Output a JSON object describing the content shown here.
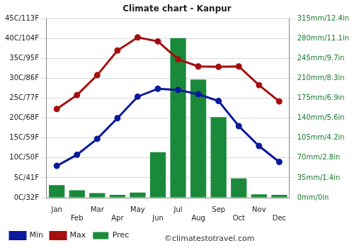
{
  "chart_data": {
    "type": "bar",
    "title": "Climate chart - Kanpur",
    "annotations": [
      "©climatestotravel.com"
    ],
    "categories": [
      "Jan",
      "Feb",
      "Mar",
      "Apr",
      "May",
      "Jun",
      "Jul",
      "Aug",
      "Sep",
      "Oct",
      "Nov",
      "Dec"
    ],
    "series": [
      {
        "name": "Prec",
        "type": "bar",
        "axis": "y2",
        "color": "#1a8a3a",
        "values": [
          22,
          13,
          8,
          5,
          9,
          80,
          281,
          208,
          142,
          34,
          6,
          5
        ]
      },
      {
        "name": "Min",
        "type": "line",
        "marker": "circle",
        "color": "#0a1a9a",
        "values": [
          8,
          10.8,
          14.8,
          20,
          25.4,
          27.4,
          27.1,
          26,
          24.3,
          18,
          13,
          9
        ]
      },
      {
        "name": "Max",
        "type": "line",
        "marker": "circle",
        "color": "#a50f0f",
        "values": [
          22.3,
          25.8,
          30.8,
          37,
          40.3,
          39.3,
          34.8,
          33,
          32.9,
          33,
          28.3,
          24.2
        ]
      }
    ],
    "ylim": [
      0,
      45
    ],
    "yticks": [
      {
        "value": 0,
        "label": "0C/32F"
      },
      {
        "value": 5,
        "label": "5C/41F"
      },
      {
        "value": 10,
        "label": "10C/50F"
      },
      {
        "value": 15,
        "label": "15C/59F"
      },
      {
        "value": 20,
        "label": "20C/68F"
      },
      {
        "value": 25,
        "label": "25C/77F"
      },
      {
        "value": 30,
        "label": "30C/86F"
      },
      {
        "value": 35,
        "label": "35C/95F"
      },
      {
        "value": 40,
        "label": "40C/104F"
      },
      {
        "value": 45,
        "label": "45C/113F"
      }
    ],
    "y2lim": [
      0,
      315
    ],
    "y2ticks": [
      {
        "value": 0,
        "label": "0mm/0in"
      },
      {
        "value": 35,
        "label": "35mm/1.4in"
      },
      {
        "value": 70,
        "label": "70mm/2.8in"
      },
      {
        "value": 105,
        "label": "105mm/4.2in"
      },
      {
        "value": 140,
        "label": "140mm/5.6in"
      },
      {
        "value": 175,
        "label": "175mm/6.9in"
      },
      {
        "value": 210,
        "label": "210mm/8.3in"
      },
      {
        "value": 245,
        "label": "245mm/9.7in"
      },
      {
        "value": 280,
        "label": "280mm/11.1in"
      },
      {
        "value": 315,
        "label": "315mm/12.4in"
      }
    ],
    "grid": true,
    "legend": "bottom"
  }
}
